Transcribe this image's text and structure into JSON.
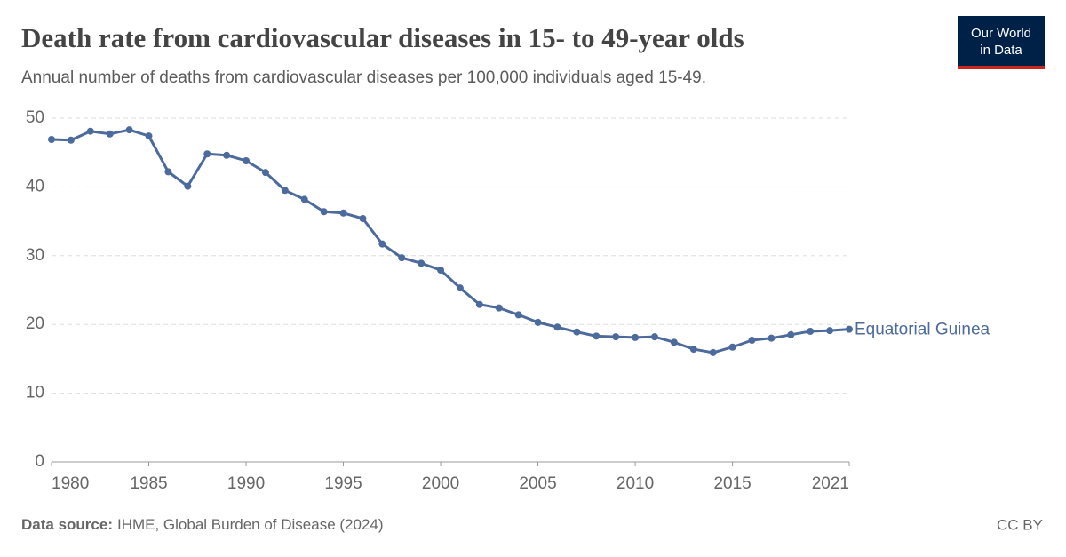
{
  "chart_data": {
    "type": "line",
    "title": "Death rate from cardiovascular diseases in 15- to 49-year olds",
    "subtitle": "Annual number of deaths from cardiovascular diseases per 100,000 individuals aged 15-49.",
    "x": [
      1980,
      1981,
      1982,
      1983,
      1984,
      1985,
      1986,
      1987,
      1988,
      1989,
      1990,
      1991,
      1992,
      1993,
      1994,
      1995,
      1996,
      1997,
      1998,
      1999,
      2000,
      2001,
      2002,
      2003,
      2004,
      2005,
      2006,
      2007,
      2008,
      2009,
      2010,
      2011,
      2012,
      2013,
      2014,
      2015,
      2016,
      2017,
      2018,
      2019,
      2020,
      2021
    ],
    "series": [
      {
        "name": "Equatorial Guinea",
        "color": "#4c6a9c",
        "values": [
          46.9,
          46.8,
          48.1,
          47.7,
          48.3,
          47.4,
          42.2,
          40.1,
          44.8,
          44.6,
          43.8,
          42.1,
          39.5,
          38.2,
          36.4,
          36.2,
          35.4,
          31.7,
          29.7,
          28.9,
          27.9,
          25.3,
          22.9,
          22.4,
          21.4,
          20.3,
          19.6,
          18.9,
          18.3,
          18.2,
          18.1,
          18.2,
          17.4,
          16.4,
          15.9,
          16.7,
          17.7,
          18.0,
          18.5,
          19.0,
          19.1,
          19.3
        ]
      }
    ],
    "xlim": [
      1980,
      2021
    ],
    "xticks": [
      1980,
      1985,
      1990,
      1995,
      2000,
      2005,
      2010,
      2015,
      2021
    ],
    "ylim": [
      0,
      50
    ],
    "yticks": [
      0,
      10,
      20,
      30,
      40,
      50
    ],
    "grid": true
  },
  "logo": [
    "Our World",
    "in Data"
  ],
  "source_label": "Data source:",
  "source": "IHME, Global Burden of Disease (2024)",
  "license": "CC BY"
}
